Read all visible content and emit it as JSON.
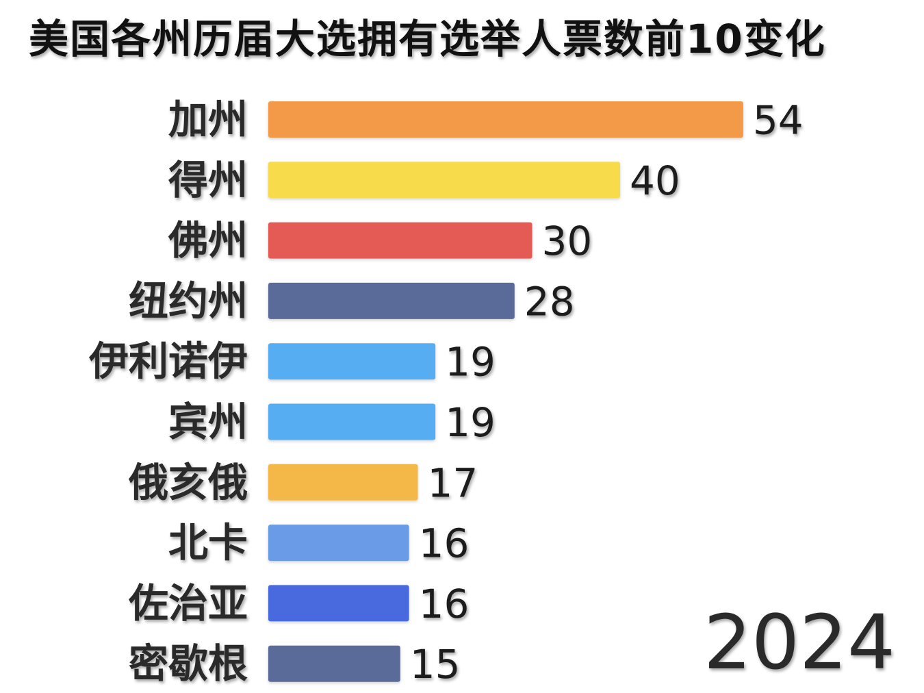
{
  "chart_data": {
    "type": "bar",
    "orientation": "horizontal",
    "title": "美国各州历届大选拥有选举人票数前10变化",
    "year": "2024",
    "categories": [
      "加州",
      "得州",
      "佛州",
      "纽约州",
      "伊利诺伊",
      "宾州",
      "俄亥俄",
      "北卡",
      "佐治亚",
      "密歇根"
    ],
    "values": [
      54,
      40,
      30,
      28,
      19,
      19,
      17,
      16,
      16,
      15
    ],
    "colors": [
      "#F39A48",
      "#F7DB4C",
      "#E45A54",
      "#5A6A99",
      "#57ADF2",
      "#57ADF2",
      "#F4B84A",
      "#6A9BE6",
      "#4869DE",
      "#5A6A99"
    ],
    "grid": false,
    "legend": "none"
  }
}
